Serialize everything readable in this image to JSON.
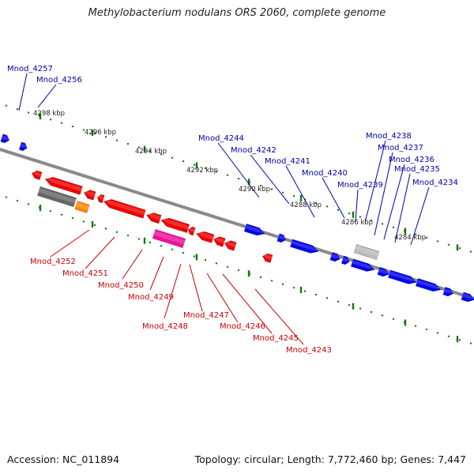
{
  "title": "Methylobacterium nodulans ORS 2060, complete genome",
  "footer": {
    "accession": "Accession: NC_011894",
    "summary": "Topology: circular; Length: 7,772,460 bp; Genes: 7,447"
  },
  "colors": {
    "forward_gene": "#0000ee",
    "reverse_gene": "#ee0000",
    "pseudo_gene": "#666666",
    "rna_gene": "#ff8800",
    "pink_gene": "#ee1199",
    "light_gene": "#bbbbbb",
    "backbone": "#8a8a8a",
    "tick": "#117711",
    "forward_label": "#0000aa",
    "reverse_label": "#cc0000"
  },
  "kbp_labels": [
    "4298 kbp",
    "4296 kbp",
    "4294 kbp",
    "4292 kbp",
    "4290 kbp",
    "4288 kbp",
    "4286 kbp",
    "4284 kbp"
  ],
  "forward_labels": [
    "Mnod_4257",
    "Mnod_4256",
    "Mnod_4244",
    "Mnod_4242",
    "Mnod_4241",
    "Mnod_4240",
    "Mnod_4239",
    "Mnod_4238",
    "Mnod_4237",
    "Mnod_4236",
    "Mnod_4235",
    "Mnod_4234"
  ],
  "reverse_labels": [
    "Mnod_4252",
    "Mnod_4251",
    "Mnod_4250",
    "Mnod_4249",
    "Mnod_4248",
    "Mnod_4247",
    "Mnod_4246",
    "Mnod_4245",
    "Mnod_4243"
  ]
}
